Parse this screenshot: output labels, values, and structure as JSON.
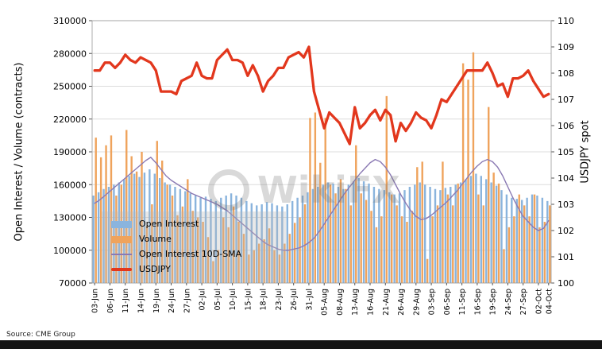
{
  "watermark": "WikiFX",
  "source_note": "Source: CME Group",
  "chart_data": {
    "type": "combo (grouped bars + lines, dual axis)",
    "grid": true,
    "legend_position": "lower-left",
    "x": [
      "03-Jun",
      "04-Jun",
      "05-Jun",
      "06-Jun",
      "07-Jun",
      "10-Jun",
      "11-Jun",
      "12-Jun",
      "13-Jun",
      "14-Jun",
      "17-Jun",
      "18-Jun",
      "19-Jun",
      "20-Jun",
      "21-Jun",
      "24-Jun",
      "25-Jun",
      "26-Jun",
      "27-Jun",
      "28-Jun",
      "01-Jul",
      "02-Jul",
      "03-Jul",
      "04-Jul",
      "05-Jul",
      "08-Jul",
      "09-Jul",
      "10-Jul",
      "11-Jul",
      "12-Jul",
      "15-Jul",
      "16-Jul",
      "17-Jul",
      "18-Jul",
      "19-Jul",
      "22-Jul",
      "23-Jul",
      "24-Jul",
      "25-Jul",
      "26-Jul",
      "29-Jul",
      "30-Jul",
      "31-Jul",
      "01-Aug",
      "02-Aug",
      "05-Aug",
      "06-Aug",
      "07-Aug",
      "08-Aug",
      "09-Aug",
      "12-Aug",
      "13-Aug",
      "14-Aug",
      "15-Aug",
      "16-Aug",
      "19-Aug",
      "20-Aug",
      "21-Aug",
      "22-Aug",
      "23-Aug",
      "26-Aug",
      "27-Aug",
      "28-Aug",
      "29-Aug",
      "30-Aug",
      "02-Sep",
      "03-Sep",
      "04-Sep",
      "05-Sep",
      "06-Sep",
      "09-Sep",
      "10-Sep",
      "11-Sep",
      "12-Sep",
      "13-Sep",
      "16-Sep",
      "17-Sep",
      "18-Sep",
      "19-Sep",
      "20-Sep",
      "23-Sep",
      "24-Sep",
      "25-Sep",
      "26-Sep",
      "27-Sep",
      "30-Sep",
      "01-Oct",
      "02-Oct",
      "03-Oct",
      "04-Oct"
    ],
    "x_tick_every": 3,
    "left_axis": {
      "title": "Open Interest / Volume (contracts)",
      "min": 70000,
      "max": 310000,
      "ticks": [
        70000,
        100000,
        130000,
        160000,
        190000,
        220000,
        250000,
        280000,
        310000
      ]
    },
    "right_axis": {
      "title": "USDJPY spot",
      "min": 100,
      "max": 110,
      "ticks": [
        100,
        101,
        102,
        103,
        104,
        105,
        106,
        107,
        108,
        109,
        110
      ]
    },
    "series": [
      {
        "name": "Open Interest",
        "type": "bar",
        "axis": "left",
        "color": "#8ab4dd",
        "values": [
          150000,
          153000,
          156000,
          158000,
          160000,
          162000,
          165000,
          168000,
          170000,
          167000,
          171000,
          174000,
          170000,
          166000,
          162000,
          160000,
          158000,
          156000,
          154000,
          152000,
          150000,
          148000,
          149000,
          147000,
          145000,
          148000,
          150000,
          152000,
          150000,
          148000,
          145000,
          143000,
          141000,
          142000,
          144000,
          143000,
          141000,
          140000,
          142000,
          145000,
          148000,
          150000,
          153000,
          156000,
          158000,
          160000,
          162000,
          161000,
          158000,
          156000,
          160000,
          163000,
          166000,
          163000,
          161000,
          158000,
          156000,
          155000,
          153000,
          151000,
          152000,
          155000,
          158000,
          160000,
          162000,
          160000,
          158000,
          156000,
          155000,
          157000,
          158000,
          160000,
          162000,
          165000,
          168000,
          170000,
          168000,
          165000,
          162000,
          159000,
          155000,
          151000,
          148000,
          147000,
          146000,
          148000,
          151000,
          150000,
          148000,
          145000
        ]
      },
      {
        "name": "Volume",
        "type": "bar",
        "axis": "left",
        "color": "#efa35c",
        "values": [
          203000,
          185000,
          196000,
          205000,
          150000,
          160000,
          210000,
          186000,
          172000,
          190000,
          122000,
          142000,
          200000,
          182000,
          160000,
          150000,
          132000,
          140000,
          165000,
          136000,
          130000,
          126000,
          112000,
          90000,
          100000,
          130000,
          121000,
          140000,
          126000,
          115000,
          96000,
          100000,
          106000,
          110000,
          120000,
          100000,
          96000,
          106000,
          115000,
          125000,
          130000,
          142000,
          221000,
          226000,
          180000,
          221000,
          160000,
          152000,
          165000,
          156000,
          141000,
          196000,
          152000,
          146000,
          136000,
          121000,
          131000,
          241000,
          151000,
          141000,
          131000,
          126000,
          136000,
          176000,
          181000,
          92000,
          131000,
          141000,
          181000,
          151000,
          141000,
          161000,
          271000,
          256000,
          281000,
          151000,
          141000,
          231000,
          171000,
          161000,
          101000,
          121000,
          131000,
          151000,
          141000,
          131000,
          151000,
          121000,
          126000,
          141000
        ]
      },
      {
        "name": "Open Interest 10D-SMA",
        "type": "line",
        "axis": "left",
        "color": "#8a79b3",
        "values": [
          143000,
          146000,
          150000,
          154000,
          158000,
          162000,
          166000,
          170000,
          174000,
          178000,
          182000,
          185000,
          180000,
          174000,
          168000,
          164000,
          161000,
          158000,
          155000,
          152000,
          150000,
          148000,
          146000,
          144000,
          142000,
          139000,
          136000,
          132000,
          128000,
          124000,
          120000,
          116000,
          112000,
          108000,
          105000,
          103000,
          101000,
          100000,
          100000,
          101000,
          102000,
          104000,
          107000,
          111000,
          117000,
          124000,
          131000,
          138000,
          145000,
          152000,
          158000,
          164000,
          170000,
          175000,
          180000,
          183000,
          181000,
          176000,
          169000,
          160000,
          151000,
          143000,
          136000,
          131000,
          128000,
          129000,
          132000,
          136000,
          140000,
          144000,
          149000,
          154000,
          160000,
          166000,
          172000,
          177000,
          181000,
          183000,
          181000,
          176000,
          168000,
          158000,
          148000,
          139000,
          131000,
          126000,
          121000,
          118000,
          120000,
          127000
        ]
      },
      {
        "name": "USDJPY",
        "type": "line",
        "axis": "right",
        "color": "#e2371d",
        "values": [
          108.1,
          108.1,
          108.4,
          108.4,
          108.2,
          108.4,
          108.7,
          108.5,
          108.4,
          108.6,
          108.5,
          108.4,
          108.1,
          107.3,
          107.3,
          107.3,
          107.2,
          107.7,
          107.8,
          107.9,
          108.4,
          107.9,
          107.8,
          107.8,
          108.5,
          108.7,
          108.9,
          108.5,
          108.5,
          108.4,
          107.9,
          108.3,
          107.9,
          107.3,
          107.7,
          107.9,
          108.2,
          108.2,
          108.6,
          108.7,
          108.8,
          108.6,
          109.0,
          107.3,
          106.6,
          105.9,
          106.5,
          106.3,
          106.1,
          105.7,
          105.3,
          106.7,
          105.9,
          106.1,
          106.4,
          106.6,
          106.2,
          106.6,
          106.4,
          105.4,
          106.1,
          105.8,
          106.1,
          106.5,
          106.3,
          106.2,
          105.9,
          106.4,
          107.0,
          106.9,
          107.2,
          107.5,
          107.8,
          108.1,
          108.1,
          108.1,
          108.1,
          108.4,
          108.0,
          107.5,
          107.6,
          107.1,
          107.8,
          107.8,
          107.9,
          108.1,
          107.7,
          107.4,
          107.1,
          107.2
        ]
      }
    ]
  }
}
